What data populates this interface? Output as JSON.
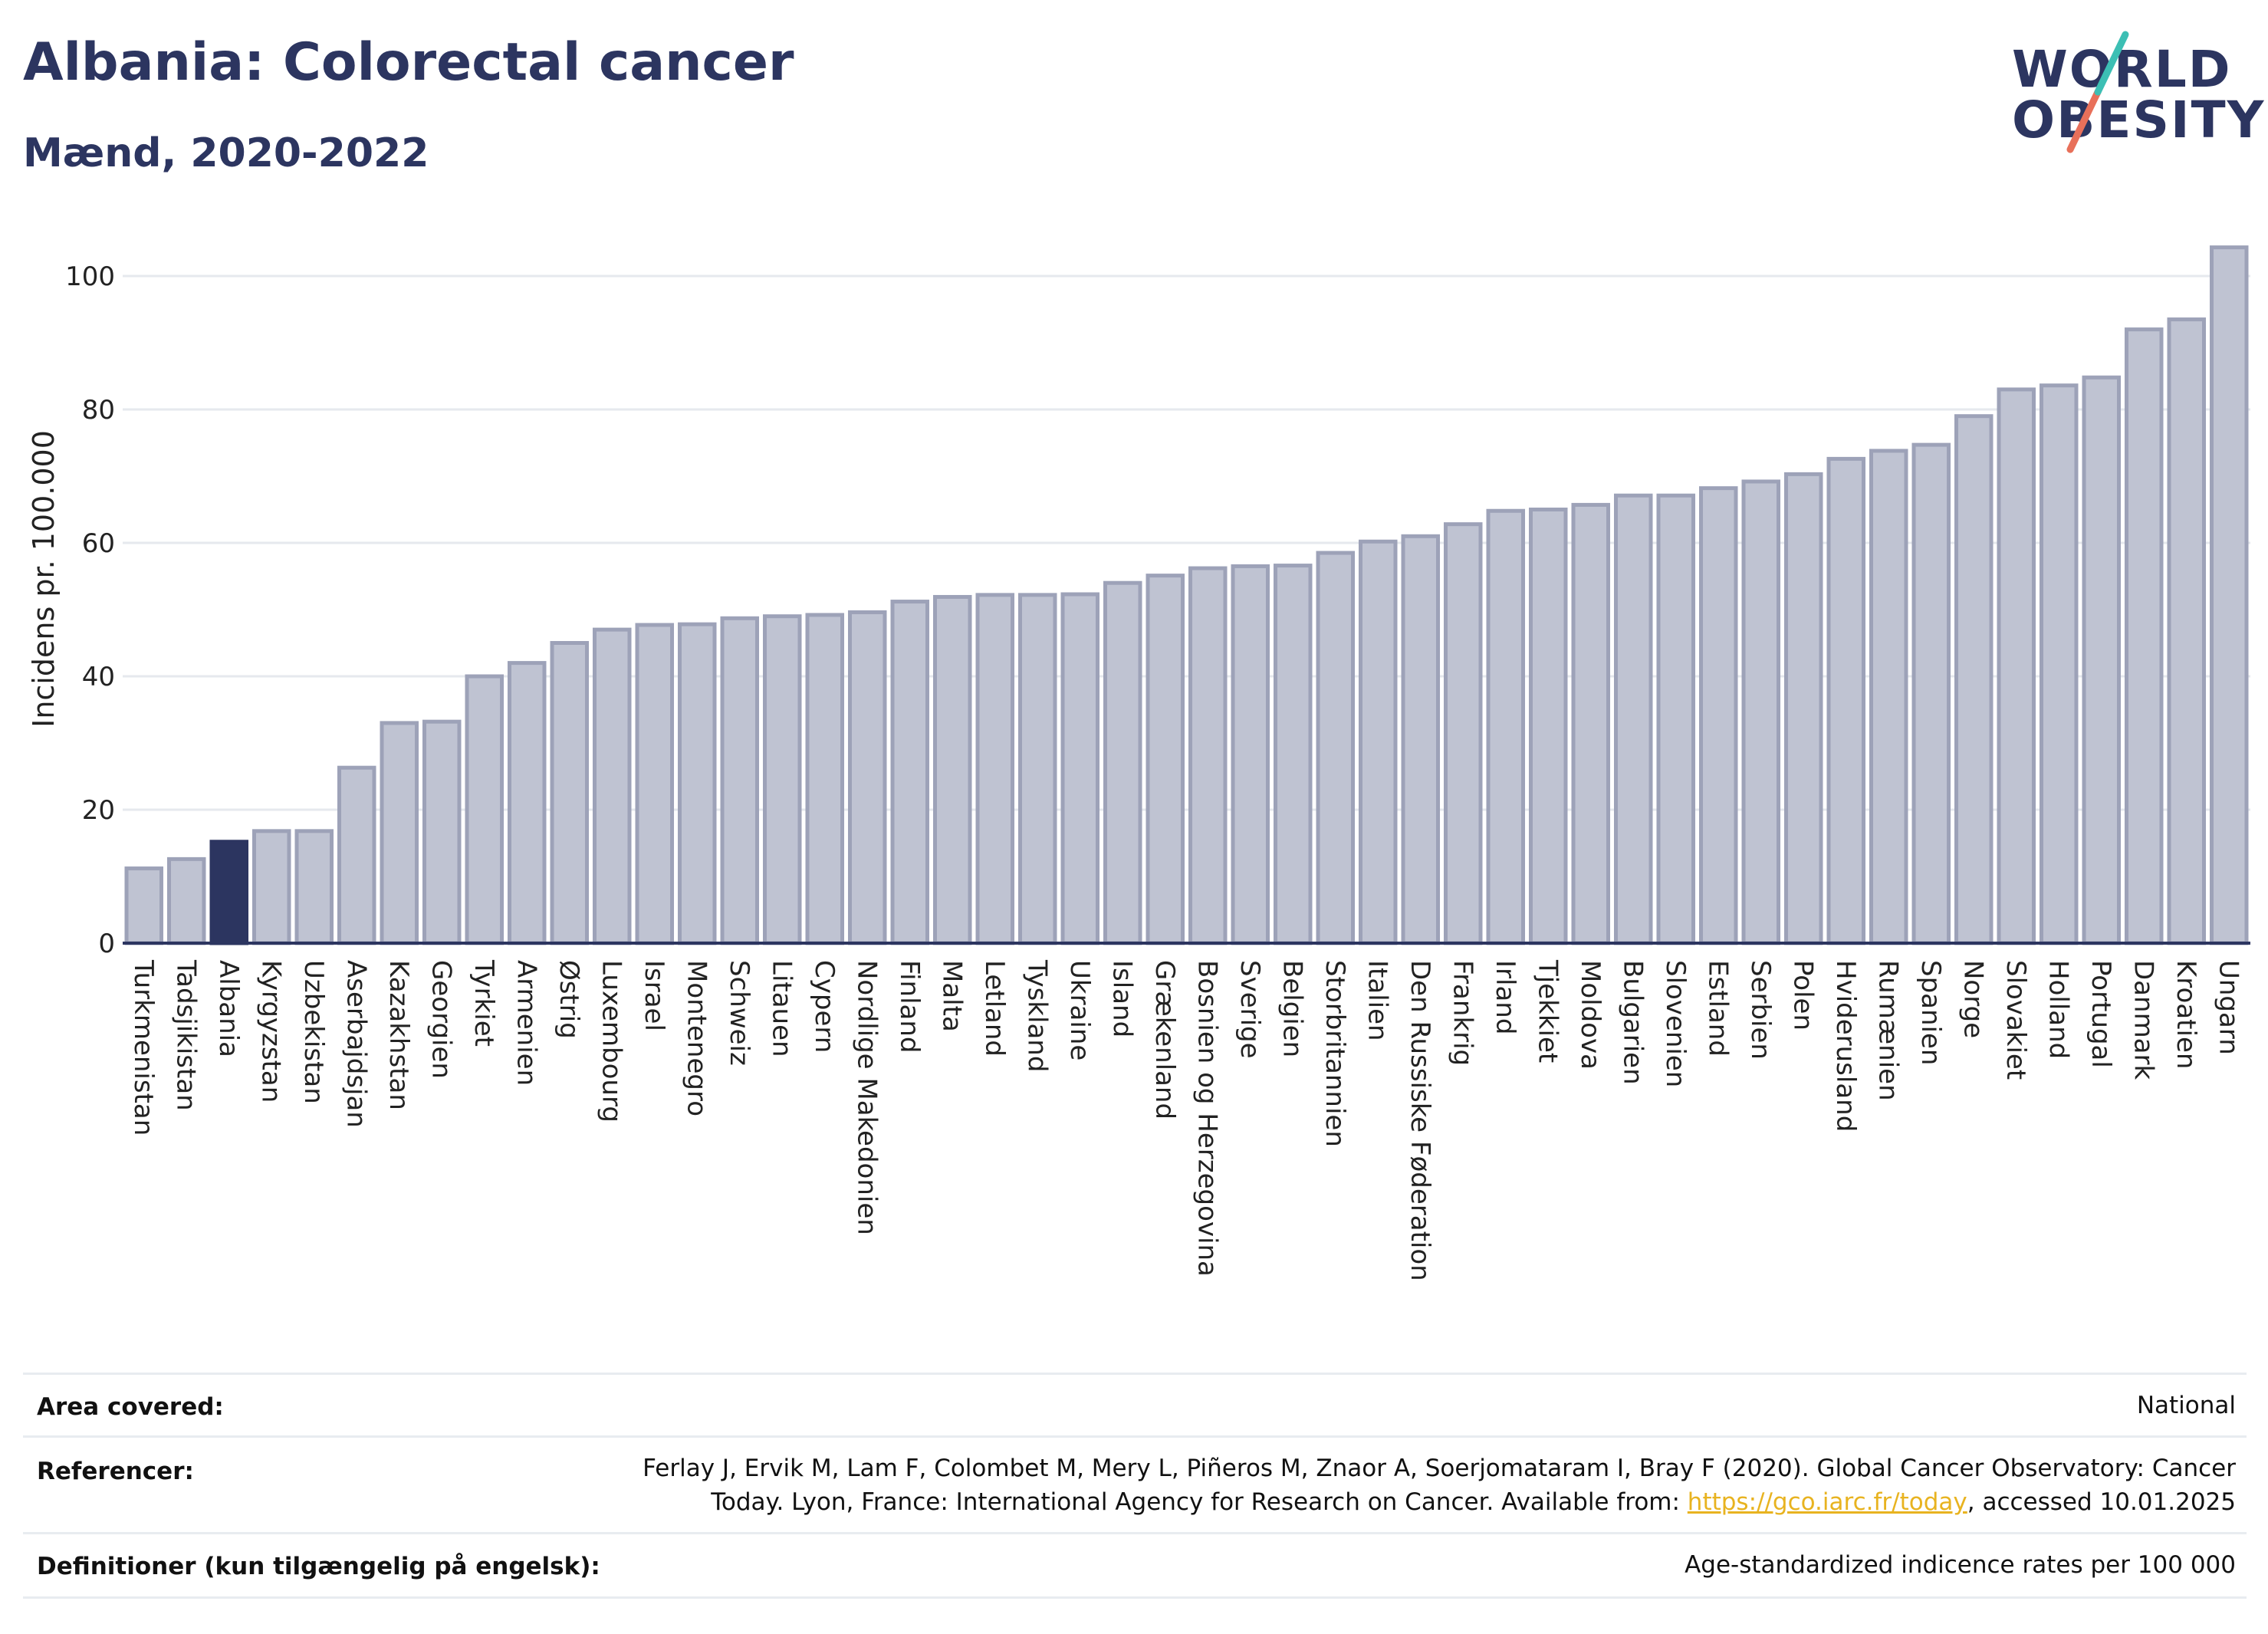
{
  "header": {
    "title": "Albania: Colorectal cancer",
    "subtitle": "Mænd, 2020-2022"
  },
  "logo": {
    "line1": "WORLD",
    "line2": "OBESITY"
  },
  "chart_data": {
    "type": "bar",
    "ylabel": "Incidens pr. 100.000",
    "ylim": [
      0,
      105
    ],
    "yticks": [
      0,
      20,
      40,
      60,
      80,
      100
    ],
    "grid": true,
    "highlight": "Albania",
    "colors": {
      "bar": "#bfc3d2",
      "bar_edge": "#9da2b8",
      "highlight": "#2c3560"
    },
    "categories": [
      "Turkmenistan",
      "Tadsjikistan",
      "Albania",
      "Kyrgyzstan",
      "Uzbekistan",
      "Aserbajdsjan",
      "Kazakhstan",
      "Georgien",
      "Tyrkiet",
      "Armenien",
      "Østrig",
      "Luxembourg",
      "Israel",
      "Montenegro",
      "Schweiz",
      "Litauen",
      "Cypern",
      "Nordlige Makedonien",
      "Finland",
      "Malta",
      "Letland",
      "Tyskland",
      "Ukraine",
      "Island",
      "Grækenland",
      "Bosnien og Herzegovina",
      "Sverige",
      "Belgien",
      "Storbritannien",
      "Italien",
      "Den Russiske Føderation",
      "Frankrig",
      "Irland",
      "Tjekkiet",
      "Moldova",
      "Bulgarien",
      "Slovenien",
      "Estland",
      "Serbien",
      "Polen",
      "Hviderusland",
      "Rumænien",
      "Spanien",
      "Norge",
      "Slovakiet",
      "Holland",
      "Portugal",
      "Danmark",
      "Kroatien",
      "Ungarn"
    ],
    "values": [
      11.2,
      12.6,
      15.2,
      16.8,
      16.8,
      26.3,
      33.0,
      33.2,
      40.0,
      42.0,
      45.0,
      47.0,
      47.7,
      47.8,
      48.7,
      49.0,
      49.2,
      49.6,
      51.2,
      51.9,
      52.2,
      52.2,
      52.3,
      54.0,
      55.1,
      56.2,
      56.5,
      56.6,
      58.5,
      60.2,
      61.0,
      62.8,
      64.8,
      65.0,
      65.7,
      67.1,
      67.1,
      68.2,
      69.2,
      70.3,
      72.6,
      73.8,
      74.7,
      79.0,
      83.0,
      83.6,
      84.8,
      92.0,
      93.5,
      104.3
    ]
  },
  "info": {
    "area_label": "Area covered:",
    "area_value": "National",
    "ref_label": "Referencer:",
    "ref_line1": "Ferlay J, Ervik M, Lam F, Colombet M, Mery L, Piñeros M, Znaor A, Soerjomataram I, Bray F (2020). Global Cancer Observatory: Cancer",
    "ref_line2_pre": "Today. Lyon, France: International Agency for Research on Cancer. Available from: ",
    "ref_link": "https://gco.iarc.fr/today",
    "ref_line2_post": ", accessed 10.01.2025",
    "def_label": "Definitioner (kun tilgængelig på engelsk):",
    "def_value": "Age-standardized indicence rates per 100 000"
  }
}
